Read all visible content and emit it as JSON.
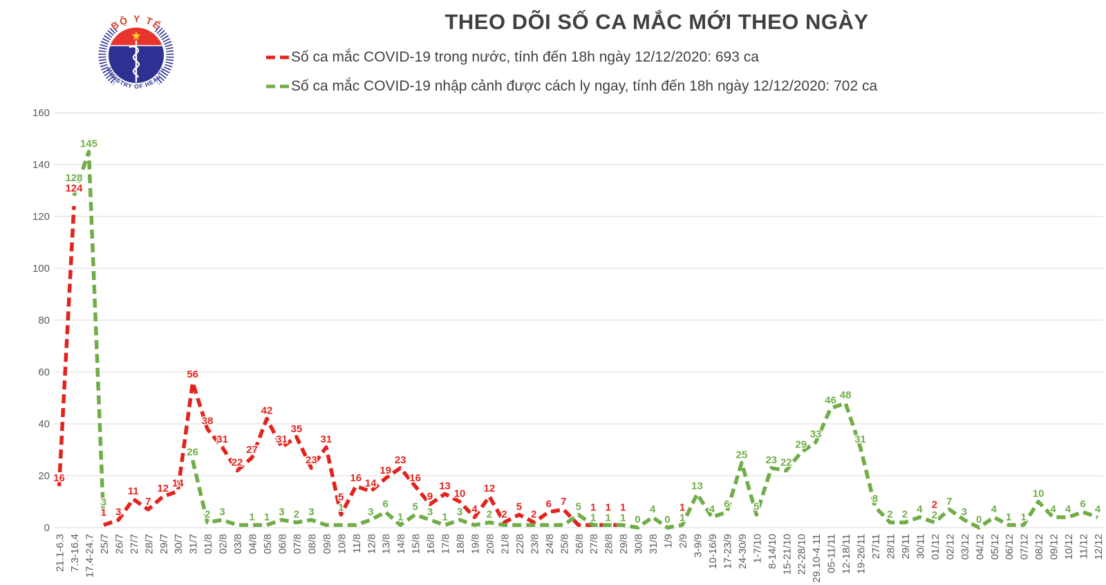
{
  "header": {
    "title": "THEO DÕI SỐ CA MẮC MỚI THEO NGÀY",
    "logo": {
      "top_text": "BỘ Y TẾ",
      "bottom_text": "MINISTRY OF HEALTH"
    },
    "legend": [
      {
        "label": "Số ca mắc COVID-19 trong nước, tính đến 18h ngày 12/12/2020: 693 ca",
        "color": "#e2231d"
      },
      {
        "label": "Số ca mắc COVID-19 nhập cảnh được cách ly ngay, tính đến 18h ngày 12/12/2020: 702 ca",
        "color": "#70ad47"
      }
    ]
  },
  "chart_data": {
    "type": "line",
    "title": "THEO DÕI SỐ CA MẮC MỚI THEO NGÀY",
    "line_style": "dashed",
    "grid": "horizontal",
    "legend_position": "top",
    "ylim": [
      0,
      160
    ],
    "yticks": [
      0,
      20,
      40,
      60,
      80,
      100,
      120,
      140,
      160
    ],
    "categories": [
      "21.1-6.3",
      "7.3-16.4",
      "17.4-24.7",
      "25/7",
      "26/7",
      "27/7",
      "28/7",
      "29/7",
      "30/7",
      "31/7",
      "01/8",
      "02/8",
      "03/8",
      "04/8",
      "05/8",
      "06/8",
      "07/8",
      "08/8",
      "09/8",
      "10/8",
      "11/8",
      "12/8",
      "13/8",
      "14/8",
      "15/8",
      "16/8",
      "17/8",
      "18/8",
      "19/8",
      "20/8",
      "21/8",
      "22/8",
      "23/8",
      "24/8",
      "25/8",
      "26/8",
      "27/8",
      "28/8",
      "29/8",
      "30/8",
      "31/8",
      "1/9",
      "2/9",
      "3-9/9",
      "10-16/9",
      "17-23/9",
      "24-30/9",
      "1-7/10",
      "8-14/10",
      "15-21/10",
      "22-28/10",
      "29.10-4.11",
      "05-11/11",
      "12-18/11",
      "19-26/11",
      "27/11",
      "28/11",
      "29/11",
      "30/11",
      "01/12",
      "02/12",
      "03/12",
      "04/12",
      "05/12",
      "06/12",
      "07/12",
      "08/12",
      "09/12",
      "10/12",
      "11/12",
      "12/12"
    ],
    "series": [
      {
        "name": "Số ca mắc COVID-19 trong nước",
        "color": "#e2231d",
        "values": [
          16,
          124,
          null,
          1,
          3,
          11,
          7,
          12,
          14,
          56,
          38,
          31,
          22,
          27,
          42,
          31,
          35,
          23,
          31,
          5,
          16,
          14,
          19,
          23,
          16,
          9,
          13,
          10,
          4,
          12,
          2,
          5,
          2,
          6,
          7,
          1,
          1,
          1,
          1,
          null,
          null,
          null,
          1,
          null,
          null,
          null,
          null,
          null,
          null,
          null,
          null,
          null,
          null,
          null,
          null,
          null,
          null,
          null,
          null,
          2,
          null,
          null,
          null,
          null,
          null,
          null,
          null,
          null,
          null,
          null,
          null
        ],
        "unlabeled_points": [
          35
        ]
      },
      {
        "name": "Số ca mắc COVID-19 nhập cảnh được cách ly ngay",
        "color": "#70ad47",
        "values": [
          null,
          128,
          145,
          3,
          null,
          null,
          null,
          null,
          null,
          26,
          2,
          3,
          1,
          1,
          1,
          3,
          2,
          3,
          1,
          1,
          1,
          3,
          6,
          1,
          5,
          3,
          1,
          3,
          1,
          2,
          1,
          1,
          1,
          1,
          1,
          5,
          1,
          1,
          1,
          0,
          4,
          0,
          1,
          13,
          4,
          6,
          25,
          5,
          23,
          22,
          29,
          33,
          46,
          48,
          31,
          8,
          2,
          2,
          4,
          2,
          7,
          3,
          0,
          4,
          1,
          1,
          10,
          4,
          4,
          6,
          4
        ],
        "unlabeled_points": [
          12,
          18,
          20,
          28,
          30,
          31,
          32,
          33,
          34
        ]
      }
    ]
  }
}
